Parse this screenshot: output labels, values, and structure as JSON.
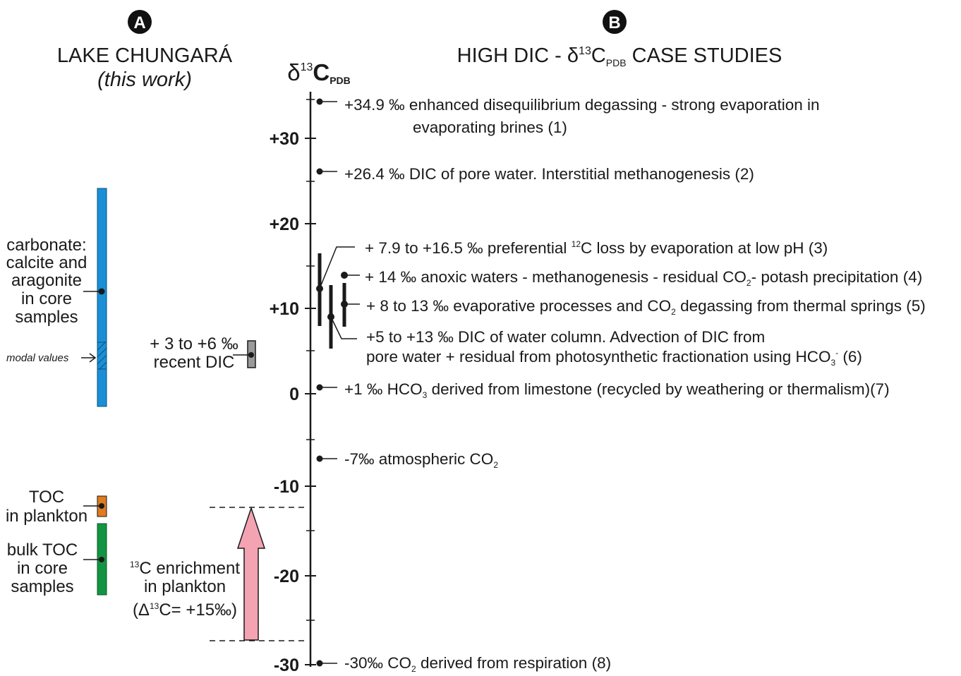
{
  "panel_a": {
    "badge": "A",
    "title": "LAKE CHUNGARÁ",
    "subtitle": "(this work)",
    "carbonate_lines": [
      "carbonate:",
      "calcite and",
      "aragonite",
      "in core",
      "samples"
    ],
    "modal_values": "modal values",
    "recent_dic_lines": [
      "+ 3 to +6 ‰",
      "recent DIC"
    ],
    "toc_plankton_lines": [
      "TOC",
      "in plankton"
    ],
    "bulk_toc_lines": [
      "bulk TOC",
      "in core",
      "samples"
    ],
    "enrichment": {
      "line1_sup": "13",
      "line1": "C enrichment",
      "line2": "in plankton",
      "line3_a": "(Δ",
      "line3_sup": "13",
      "line3_b": "C= +15‰)"
    },
    "colors": {
      "carbonate": "#1b8fd6",
      "toc_plankton": "#e07b1f",
      "bulk_toc": "#139443",
      "recent_dic": "#9a9a9a",
      "arrow": "#f4a3b3"
    }
  },
  "panel_b": {
    "badge": "B",
    "title_a": "HIGH DIC - δ",
    "title_sup": "13",
    "title_c": "C",
    "title_sub": "PDB",
    "title_d": " CASE STUDIES"
  },
  "axis": {
    "label_delta": "δ",
    "label_sup": "13",
    "label_c": "C",
    "label_sub": "PDB",
    "ticks": [
      "+30",
      "+20",
      "+10",
      "0",
      "-10",
      "-20",
      "-30"
    ]
  },
  "cases": [
    {
      "id": 1,
      "line1": "+34.9 ‰ enhanced disequilibrium degassing - strong evaporation in",
      "line2": "evaporating brines (1)"
    },
    {
      "id": 2,
      "line1": "+26.4 ‰ DIC of pore water. Interstitial methanogenesis (2)"
    },
    {
      "id": 3,
      "a": "+ 7.9 to +16.5 ‰ preferential ",
      "sup": "12",
      "b": "C loss by evaporation at low pH (3)"
    },
    {
      "id": 4,
      "a": "+ 14 ‰ anoxic waters - methanogenesis - residual CO",
      "sub": "2",
      "b": "- potash precipitation (4)"
    },
    {
      "id": 5,
      "a": "+ 8 to 13 ‰  evaporative processes and CO",
      "sub": "2",
      "b": " degassing from thermal springs (5)"
    },
    {
      "id": 6,
      "line1": "+5 to +13 ‰ DIC of water column. Advection of DIC from",
      "a": "pore water + residual from photosynthetic fractionation using HCO",
      "sub": "3",
      "sup": "-",
      "b": " (6)"
    },
    {
      "id": 7,
      "a": "+1 ‰ HCO",
      "sub": "3",
      "b": " derived from limestone (recycled by weathering or thermalism)(7)"
    },
    {
      "id": 8,
      "a": "-7‰ atmospheric CO",
      "sub": "2"
    },
    {
      "id": 9,
      "a": "-30‰ CO",
      "sub": "2",
      "b": " derived from respiration (8)"
    }
  ]
}
